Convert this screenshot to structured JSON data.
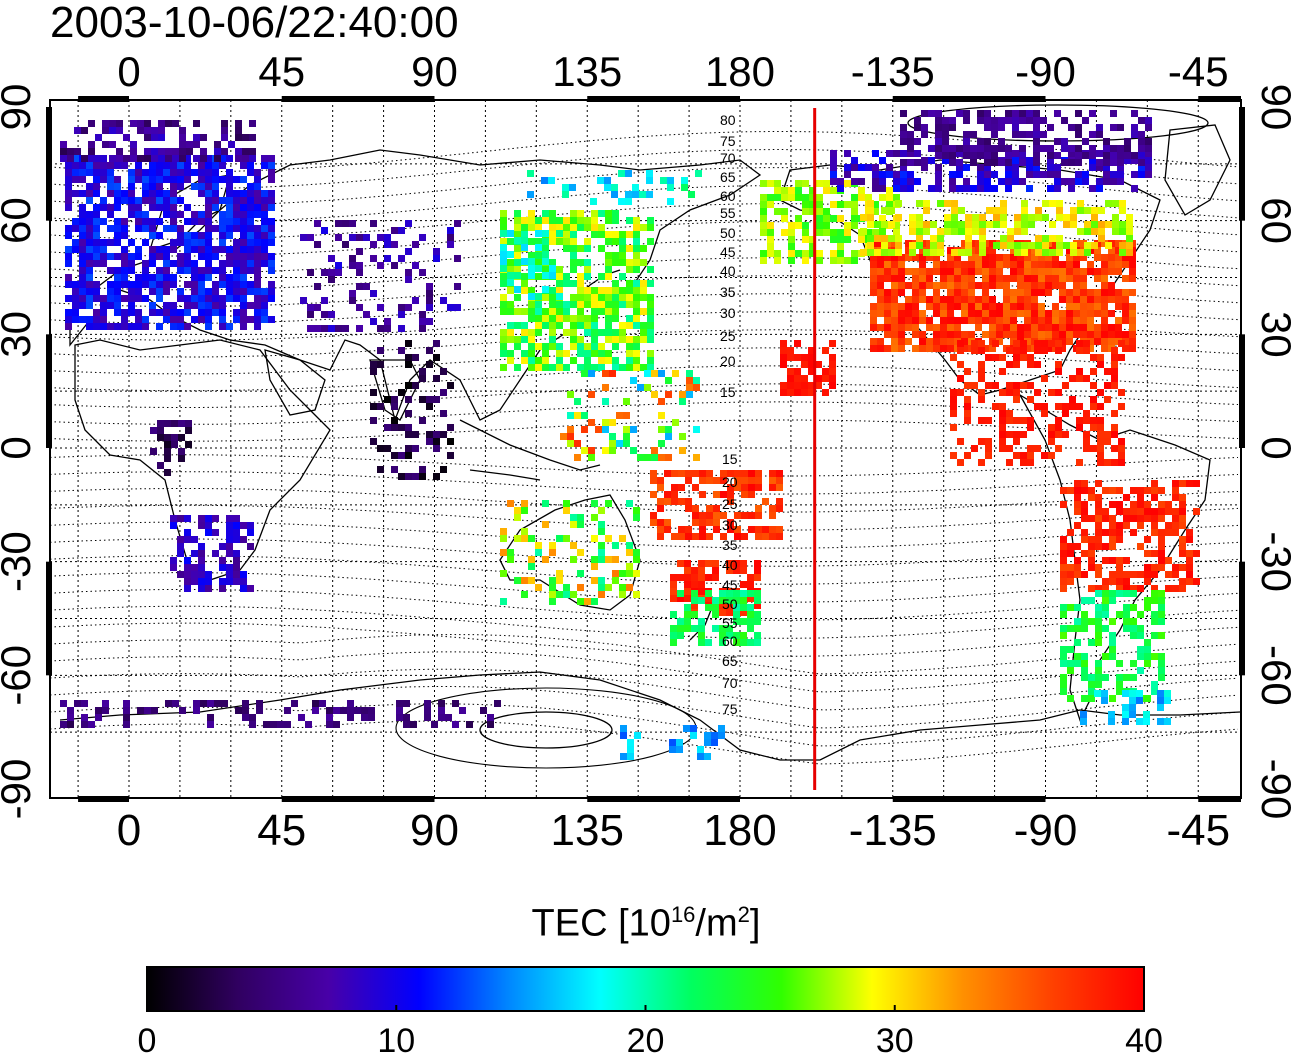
{
  "title": "2003-10-06/22:40:00",
  "map": {
    "top_ticks": [
      "0",
      "45",
      "90",
      "135",
      "180",
      "-135",
      "-90",
      "-45"
    ],
    "bottom_ticks": [
      "0",
      "45",
      "90",
      "135",
      "180",
      "-135",
      "-90",
      "-45"
    ],
    "left_ticks": [
      "90",
      "60",
      "30",
      "0",
      "-30",
      "-60",
      "-90"
    ],
    "right_ticks": [
      "90",
      "60",
      "30",
      "0",
      "-30",
      "-60",
      "-90"
    ],
    "contour_labels_north": [
      "80",
      "75",
      "70",
      "65",
      "60",
      "55",
      "50",
      "45",
      "40",
      "35",
      "30",
      "25",
      "20",
      "15"
    ],
    "contour_labels_south": [
      "15",
      "20",
      "25",
      "30",
      "35",
      "40",
      "45",
      "50",
      "55",
      "60",
      "65",
      "70",
      "75"
    ],
    "terminator_color": "#e60000",
    "terminator_longitude": -158
  },
  "colorbar": {
    "label_main": "TEC  [10",
    "label_exp": "16",
    "label_unit": "/m",
    "label_exp2": "2",
    "label_close": "]",
    "min": 0,
    "max": 40,
    "ticks": [
      "0",
      "10",
      "20",
      "30",
      "40"
    ],
    "colors": [
      "#000000",
      "#300060",
      "#4800a8",
      "#0000ff",
      "#0088ff",
      "#00ffff",
      "#00ff60",
      "#30ff00",
      "#ffff00",
      "#ff9000",
      "#ff4000",
      "#ff0000"
    ]
  }
}
